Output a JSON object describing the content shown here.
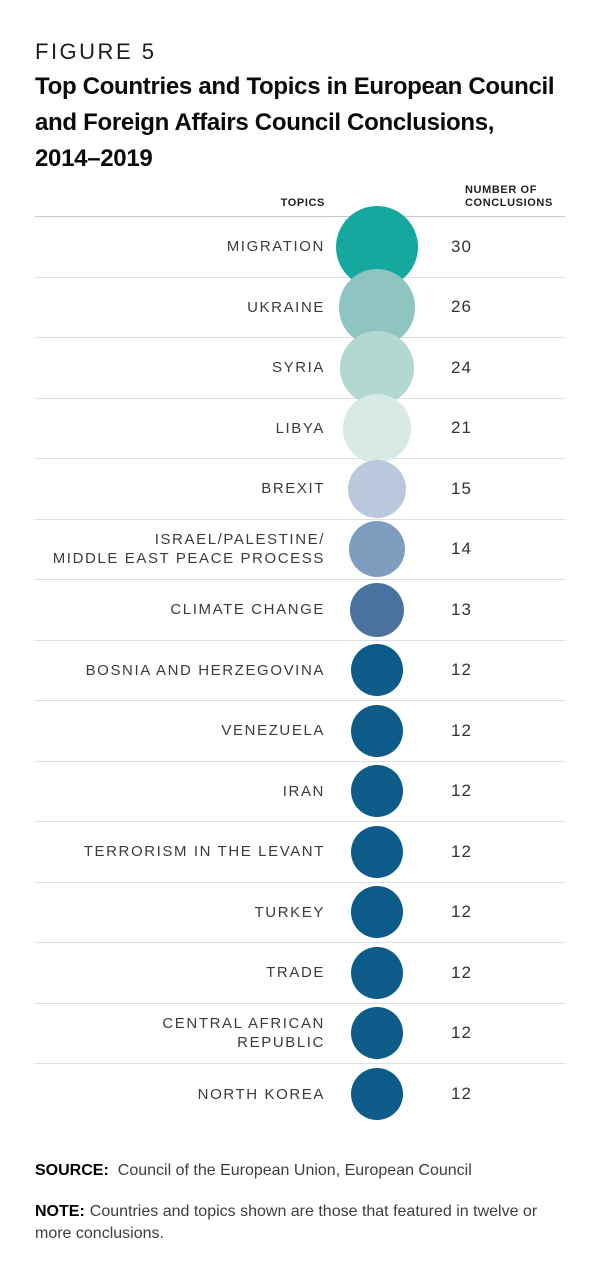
{
  "figure": {
    "label": "FIGURE 5",
    "title_lines": [
      "Top Countries and Topics in European Council",
      "and Foreign Affairs Council Conclusions,",
      "2014–2019"
    ]
  },
  "columns": {
    "topics": "TOPICS",
    "value_line1": "NUMBER OF",
    "value_line2": "CONCLUSIONS"
  },
  "chart_data": {
    "type": "table",
    "variant": "proportional-area-bubble-list",
    "title": "Top Countries and Topics in European Council and Foreign Affairs Council Conclusions, 2014–2019",
    "columns": [
      "TOPICS",
      "NUMBER OF CONCLUSIONS"
    ],
    "value_range": [
      12,
      30
    ],
    "rows": [
      {
        "topic": "MIGRATION",
        "label_lines": [
          "MIGRATION"
        ],
        "value": 30,
        "color": "#14a89e"
      },
      {
        "topic": "UKRAINE",
        "label_lines": [
          "UKRAINE"
        ],
        "value": 26,
        "color": "#8fc5c0"
      },
      {
        "topic": "SYRIA",
        "label_lines": [
          "SYRIA"
        ],
        "value": 24,
        "color": "#b3d8d2"
      },
      {
        "topic": "LIBYA",
        "label_lines": [
          "LIBYA"
        ],
        "value": 21,
        "color": "#d7eae5"
      },
      {
        "topic": "BREXIT",
        "label_lines": [
          "BREXIT"
        ],
        "value": 15,
        "color": "#b9c8dc"
      },
      {
        "topic": "ISRAEL/PALESTINE/MIDDLE EAST PEACE PROCESS",
        "label_lines": [
          "ISRAEL/PALESTINE/",
          "MIDDLE EAST PEACE PROCESS"
        ],
        "value": 14,
        "color": "#7e9cbe"
      },
      {
        "topic": "CLIMATE CHANGE",
        "label_lines": [
          "CLIMATE CHANGE"
        ],
        "value": 13,
        "color": "#4a729e"
      },
      {
        "topic": "BOSNIA AND HERZEGOVINA",
        "label_lines": [
          "BOSNIA AND HERZEGOVINA"
        ],
        "value": 12,
        "color": "#0d5b89"
      },
      {
        "topic": "VENEZUELA",
        "label_lines": [
          "VENEZUELA"
        ],
        "value": 12,
        "color": "#0d5b89"
      },
      {
        "topic": "IRAN",
        "label_lines": [
          "IRAN"
        ],
        "value": 12,
        "color": "#0d5b89"
      },
      {
        "topic": "TERRORISM IN THE LEVANT",
        "label_lines": [
          "TERRORISM IN THE LEVANT"
        ],
        "value": 12,
        "color": "#0d5b89"
      },
      {
        "topic": "TURKEY",
        "label_lines": [
          "TURKEY"
        ],
        "value": 12,
        "color": "#0d5b89"
      },
      {
        "topic": "TRADE",
        "label_lines": [
          "TRADE"
        ],
        "value": 12,
        "color": "#0d5b89"
      },
      {
        "topic": "CENTRAL AFRICAN REPUBLIC",
        "label_lines": [
          "CENTRAL AFRICAN",
          "REPUBLIC"
        ],
        "value": 12,
        "color": "#0d5b89"
      },
      {
        "topic": "NORTH KOREA",
        "label_lines": [
          "NORTH KOREA"
        ],
        "value": 12,
        "color": "#0d5b89"
      }
    ]
  },
  "footer": {
    "source_label": "SOURCE:",
    "source_text": "Council of the European Union, European Council",
    "note_label": "NOTE:",
    "note_text": "Countries and topics shown are those that featured in twelve or more conclusions."
  }
}
